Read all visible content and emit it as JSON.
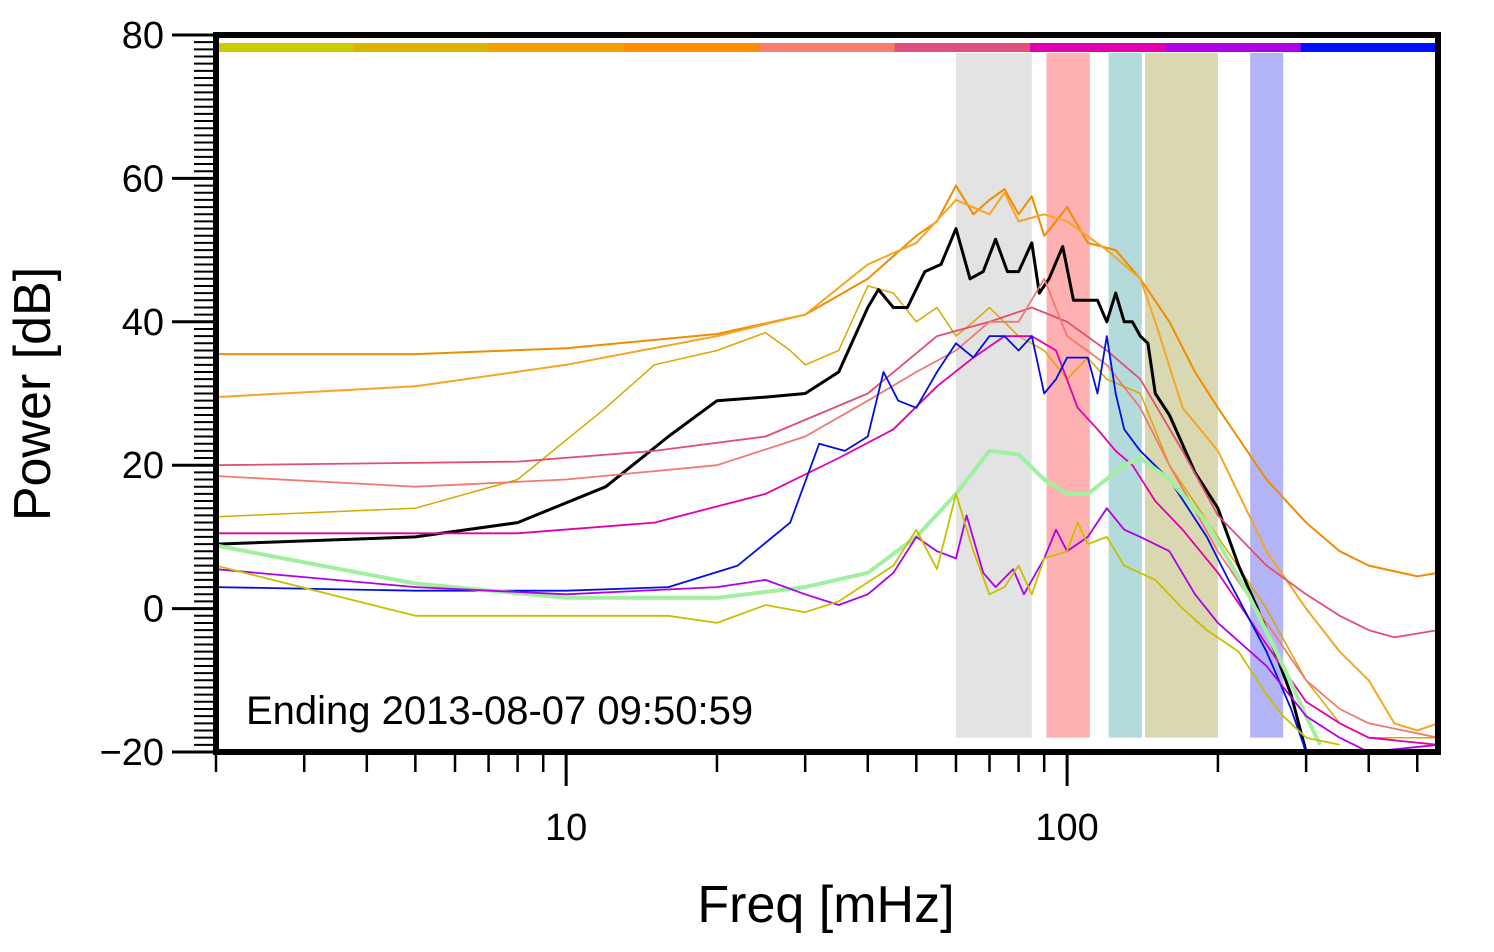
{
  "chart_data": {
    "type": "line",
    "title": "",
    "xlabel": "Freq [mHz]",
    "ylabel": "Power [dB]",
    "xscale": "log",
    "xlim": [
      2,
      550
    ],
    "ylim": [
      -20,
      80
    ],
    "x_ticks": [
      {
        "value": 10,
        "label": "10"
      },
      {
        "value": 100,
        "label": "100"
      }
    ],
    "y_ticks": [
      {
        "value": -20,
        "label": "−20"
      },
      {
        "value": 0,
        "label": "0"
      },
      {
        "value": 20,
        "label": "20"
      },
      {
        "value": 40,
        "label": "40"
      },
      {
        "value": 60,
        "label": "60"
      },
      {
        "value": 80,
        "label": "80"
      }
    ],
    "grid": false,
    "annotation": "Ending 2013-08-07 09:50:59",
    "top_color_bar": [
      "#c8cc00",
      "#dcb400",
      "#f5a000",
      "#ff8c00",
      "#ff7b6b",
      "#e0507a",
      "#e000b0",
      "#b000e6",
      "#0010ff"
    ],
    "bands": [
      {
        "x0": 60,
        "x1": 85,
        "color": "#e3e3e3"
      },
      {
        "x0": 91,
        "x1": 111,
        "color": "#ffb1b1"
      },
      {
        "x0": 121,
        "x1": 141,
        "color": "#b3dbdb"
      },
      {
        "x0": 143,
        "x1": 200,
        "color": "#d9d8b0"
      },
      {
        "x0": 232,
        "x1": 270,
        "color": "#b3b3f7"
      }
    ],
    "series": [
      {
        "color": "#f08c00",
        "width": 2,
        "points": [
          [
            2,
            35.5
          ],
          [
            5,
            35.5
          ],
          [
            10,
            36.3
          ],
          [
            20,
            38.3
          ],
          [
            30,
            41
          ],
          [
            40,
            46
          ],
          [
            50,
            52
          ],
          [
            55,
            54
          ],
          [
            60,
            59
          ],
          [
            65,
            55
          ],
          [
            70,
            57
          ],
          [
            75,
            58.5
          ],
          [
            80,
            55
          ],
          [
            85,
            57.5
          ],
          [
            90,
            52
          ],
          [
            95,
            54
          ],
          [
            100,
            56
          ],
          [
            110,
            51
          ],
          [
            125,
            50
          ],
          [
            140,
            46
          ],
          [
            160,
            40
          ],
          [
            180,
            33
          ],
          [
            200,
            28
          ],
          [
            250,
            18
          ],
          [
            300,
            12
          ],
          [
            350,
            8
          ],
          [
            400,
            6
          ],
          [
            500,
            4.5
          ],
          [
            550,
            5
          ]
        ]
      },
      {
        "color": "#f5a623",
        "width": 2,
        "points": [
          [
            2,
            29.5
          ],
          [
            5,
            31
          ],
          [
            10,
            34
          ],
          [
            20,
            38
          ],
          [
            30,
            41
          ],
          [
            40,
            48
          ],
          [
            50,
            51
          ],
          [
            60,
            57
          ],
          [
            70,
            55
          ],
          [
            75,
            58
          ],
          [
            80,
            54
          ],
          [
            90,
            55
          ],
          [
            100,
            54
          ],
          [
            120,
            50
          ],
          [
            140,
            46
          ],
          [
            150,
            40
          ],
          [
            170,
            28
          ],
          [
            200,
            22
          ],
          [
            250,
            8
          ],
          [
            300,
            0
          ],
          [
            350,
            -6
          ],
          [
            400,
            -10
          ],
          [
            450,
            -16
          ],
          [
            500,
            -17
          ],
          [
            550,
            -16
          ]
        ]
      },
      {
        "color": "#d9a800",
        "width": 1.5,
        "points": [
          [
            2,
            12.8
          ],
          [
            5,
            14
          ],
          [
            8,
            18
          ],
          [
            12,
            28
          ],
          [
            15,
            34
          ],
          [
            20,
            36
          ],
          [
            25,
            38.5
          ],
          [
            28,
            36
          ],
          [
            30,
            34
          ],
          [
            35,
            36
          ],
          [
            40,
            45
          ],
          [
            45,
            44
          ],
          [
            50,
            40
          ],
          [
            55,
            42
          ],
          [
            60,
            38
          ],
          [
            65,
            40
          ],
          [
            70,
            42
          ],
          [
            80,
            38
          ],
          [
            90,
            36
          ],
          [
            100,
            32
          ],
          [
            110,
            35
          ],
          [
            120,
            32
          ],
          [
            140,
            30
          ],
          [
            160,
            20
          ],
          [
            200,
            10
          ],
          [
            250,
            0
          ],
          [
            300,
            -10
          ],
          [
            350,
            -16
          ],
          [
            400,
            -18
          ],
          [
            550,
            -18
          ]
        ]
      },
      {
        "color": "#000000",
        "width": 3,
        "points": [
          [
            2,
            9
          ],
          [
            5,
            10
          ],
          [
            8,
            12
          ],
          [
            12,
            17
          ],
          [
            16,
            24
          ],
          [
            20,
            29
          ],
          [
            25,
            29.5
          ],
          [
            30,
            30
          ],
          [
            35,
            33
          ],
          [
            40,
            42
          ],
          [
            42,
            44.5
          ],
          [
            45,
            42
          ],
          [
            48,
            42
          ],
          [
            52,
            47
          ],
          [
            56,
            48
          ],
          [
            60,
            53
          ],
          [
            64,
            46
          ],
          [
            68,
            47
          ],
          [
            72,
            51.5
          ],
          [
            76,
            47
          ],
          [
            80,
            47
          ],
          [
            85,
            51
          ],
          [
            88,
            44
          ],
          [
            92,
            46
          ],
          [
            98,
            50.5
          ],
          [
            103,
            43
          ],
          [
            110,
            43
          ],
          [
            115,
            43
          ],
          [
            120,
            40
          ],
          [
            125,
            44
          ],
          [
            130,
            40
          ],
          [
            135,
            40
          ],
          [
            140,
            38
          ],
          [
            145,
            37
          ],
          [
            150,
            30
          ],
          [
            160,
            27
          ],
          [
            180,
            19
          ],
          [
            200,
            14
          ],
          [
            220,
            6
          ],
          [
            240,
            0
          ],
          [
            260,
            -6
          ],
          [
            280,
            -12
          ],
          [
            300,
            -20
          ]
        ]
      },
      {
        "color": "#e05070",
        "width": 1.8,
        "points": [
          [
            2,
            20
          ],
          [
            8,
            20.5
          ],
          [
            15,
            22
          ],
          [
            25,
            24
          ],
          [
            40,
            30
          ],
          [
            55,
            38
          ],
          [
            70,
            40
          ],
          [
            85,
            42
          ],
          [
            100,
            40
          ],
          [
            120,
            36
          ],
          [
            140,
            32
          ],
          [
            170,
            22
          ],
          [
            200,
            13
          ],
          [
            250,
            6
          ],
          [
            300,
            2
          ],
          [
            350,
            -1
          ],
          [
            400,
            -3
          ],
          [
            450,
            -4
          ],
          [
            550,
            -3
          ]
        ]
      },
      {
        "color": "#f07a70",
        "width": 1.8,
        "points": [
          [
            2,
            18.5
          ],
          [
            5,
            17
          ],
          [
            10,
            18
          ],
          [
            20,
            20
          ],
          [
            30,
            24
          ],
          [
            40,
            29
          ],
          [
            50,
            33
          ],
          [
            60,
            36
          ],
          [
            70,
            40
          ],
          [
            80,
            40
          ],
          [
            90,
            46
          ],
          [
            100,
            38
          ],
          [
            120,
            34
          ],
          [
            140,
            28
          ],
          [
            160,
            20
          ],
          [
            200,
            8
          ],
          [
            250,
            -2
          ],
          [
            300,
            -10
          ],
          [
            350,
            -14
          ],
          [
            400,
            -16
          ],
          [
            550,
            -18
          ]
        ]
      },
      {
        "color": "#e000b0",
        "width": 1.8,
        "points": [
          [
            2,
            10.5
          ],
          [
            8,
            10.5
          ],
          [
            15,
            12
          ],
          [
            25,
            16
          ],
          [
            35,
            21
          ],
          [
            45,
            25
          ],
          [
            55,
            31
          ],
          [
            65,
            35
          ],
          [
            75,
            38
          ],
          [
            85,
            38
          ],
          [
            95,
            36
          ],
          [
            105,
            28
          ],
          [
            115,
            25
          ],
          [
            125,
            22
          ],
          [
            135,
            20
          ],
          [
            150,
            15
          ],
          [
            170,
            11
          ],
          [
            200,
            5
          ],
          [
            250,
            -5
          ],
          [
            300,
            -13
          ],
          [
            350,
            -16
          ],
          [
            400,
            -18
          ],
          [
            550,
            -19
          ]
        ]
      },
      {
        "color": "#0010e0",
        "width": 1.8,
        "points": [
          [
            2,
            3
          ],
          [
            5,
            2.5
          ],
          [
            10,
            2.5
          ],
          [
            16,
            3
          ],
          [
            22,
            6
          ],
          [
            28,
            12
          ],
          [
            32,
            23
          ],
          [
            36,
            22
          ],
          [
            40,
            24
          ],
          [
            43,
            33
          ],
          [
            46,
            29
          ],
          [
            50,
            28
          ],
          [
            55,
            33
          ],
          [
            60,
            37
          ],
          [
            65,
            35
          ],
          [
            70,
            38
          ],
          [
            75,
            38
          ],
          [
            80,
            36
          ],
          [
            85,
            38
          ],
          [
            90,
            30
          ],
          [
            95,
            32
          ],
          [
            100,
            35
          ],
          [
            110,
            35
          ],
          [
            115,
            30
          ],
          [
            120,
            38
          ],
          [
            125,
            30
          ],
          [
            130,
            25
          ],
          [
            140,
            22
          ],
          [
            160,
            18
          ],
          [
            190,
            10
          ],
          [
            210,
            4
          ],
          [
            250,
            -6
          ],
          [
            280,
            -14
          ],
          [
            300,
            -20
          ]
        ]
      },
      {
        "color": "#a0f0a0",
        "width": 4,
        "points": [
          [
            2,
            8.8
          ],
          [
            5,
            3.5
          ],
          [
            10,
            1.5
          ],
          [
            20,
            1.5
          ],
          [
            30,
            3
          ],
          [
            40,
            5
          ],
          [
            50,
            10
          ],
          [
            60,
            16
          ],
          [
            70,
            22
          ],
          [
            80,
            21.5
          ],
          [
            90,
            18
          ],
          [
            100,
            16
          ],
          [
            110,
            16
          ],
          [
            130,
            20
          ],
          [
            140,
            21
          ],
          [
            160,
            18
          ],
          [
            190,
            12
          ],
          [
            230,
            2
          ],
          [
            270,
            -8
          ],
          [
            300,
            -15
          ],
          [
            320,
            -19
          ]
        ]
      },
      {
        "color": "#b000e6",
        "width": 1.8,
        "points": [
          [
            2,
            5.5
          ],
          [
            5,
            3
          ],
          [
            10,
            2
          ],
          [
            20,
            3
          ],
          [
            25,
            4
          ],
          [
            30,
            2
          ],
          [
            35,
            0.5
          ],
          [
            40,
            2
          ],
          [
            45,
            5
          ],
          [
            50,
            10
          ],
          [
            55,
            8
          ],
          [
            60,
            7
          ],
          [
            63,
            13
          ],
          [
            68,
            5
          ],
          [
            72,
            3
          ],
          [
            78,
            5.5
          ],
          [
            82,
            2
          ],
          [
            90,
            7
          ],
          [
            95,
            11
          ],
          [
            100,
            8
          ],
          [
            110,
            10
          ],
          [
            120,
            14
          ],
          [
            130,
            11
          ],
          [
            140,
            10
          ],
          [
            160,
            8
          ],
          [
            180,
            2
          ],
          [
            200,
            -2
          ],
          [
            250,
            -8
          ],
          [
            300,
            -15
          ],
          [
            350,
            -18
          ],
          [
            400,
            -20
          ],
          [
            550,
            -19
          ]
        ]
      },
      {
        "color": "#c8c000",
        "width": 1.8,
        "points": [
          [
            2,
            6
          ],
          [
            5,
            -1
          ],
          [
            10,
            -1
          ],
          [
            16,
            -1
          ],
          [
            20,
            -2
          ],
          [
            25,
            0.5
          ],
          [
            30,
            -0.5
          ],
          [
            35,
            1
          ],
          [
            45,
            6
          ],
          [
            50,
            11
          ],
          [
            55,
            5.5
          ],
          [
            60,
            16
          ],
          [
            65,
            8
          ],
          [
            70,
            2
          ],
          [
            75,
            3
          ],
          [
            80,
            6
          ],
          [
            85,
            2
          ],
          [
            90,
            7
          ],
          [
            100,
            8
          ],
          [
            105,
            12
          ],
          [
            110,
            9
          ],
          [
            120,
            10
          ],
          [
            130,
            6
          ],
          [
            150,
            4
          ],
          [
            170,
            0
          ],
          [
            190,
            -3
          ],
          [
            220,
            -6
          ],
          [
            250,
            -12
          ],
          [
            270,
            -15
          ],
          [
            300,
            -18
          ],
          [
            350,
            -19
          ]
        ]
      }
    ]
  }
}
